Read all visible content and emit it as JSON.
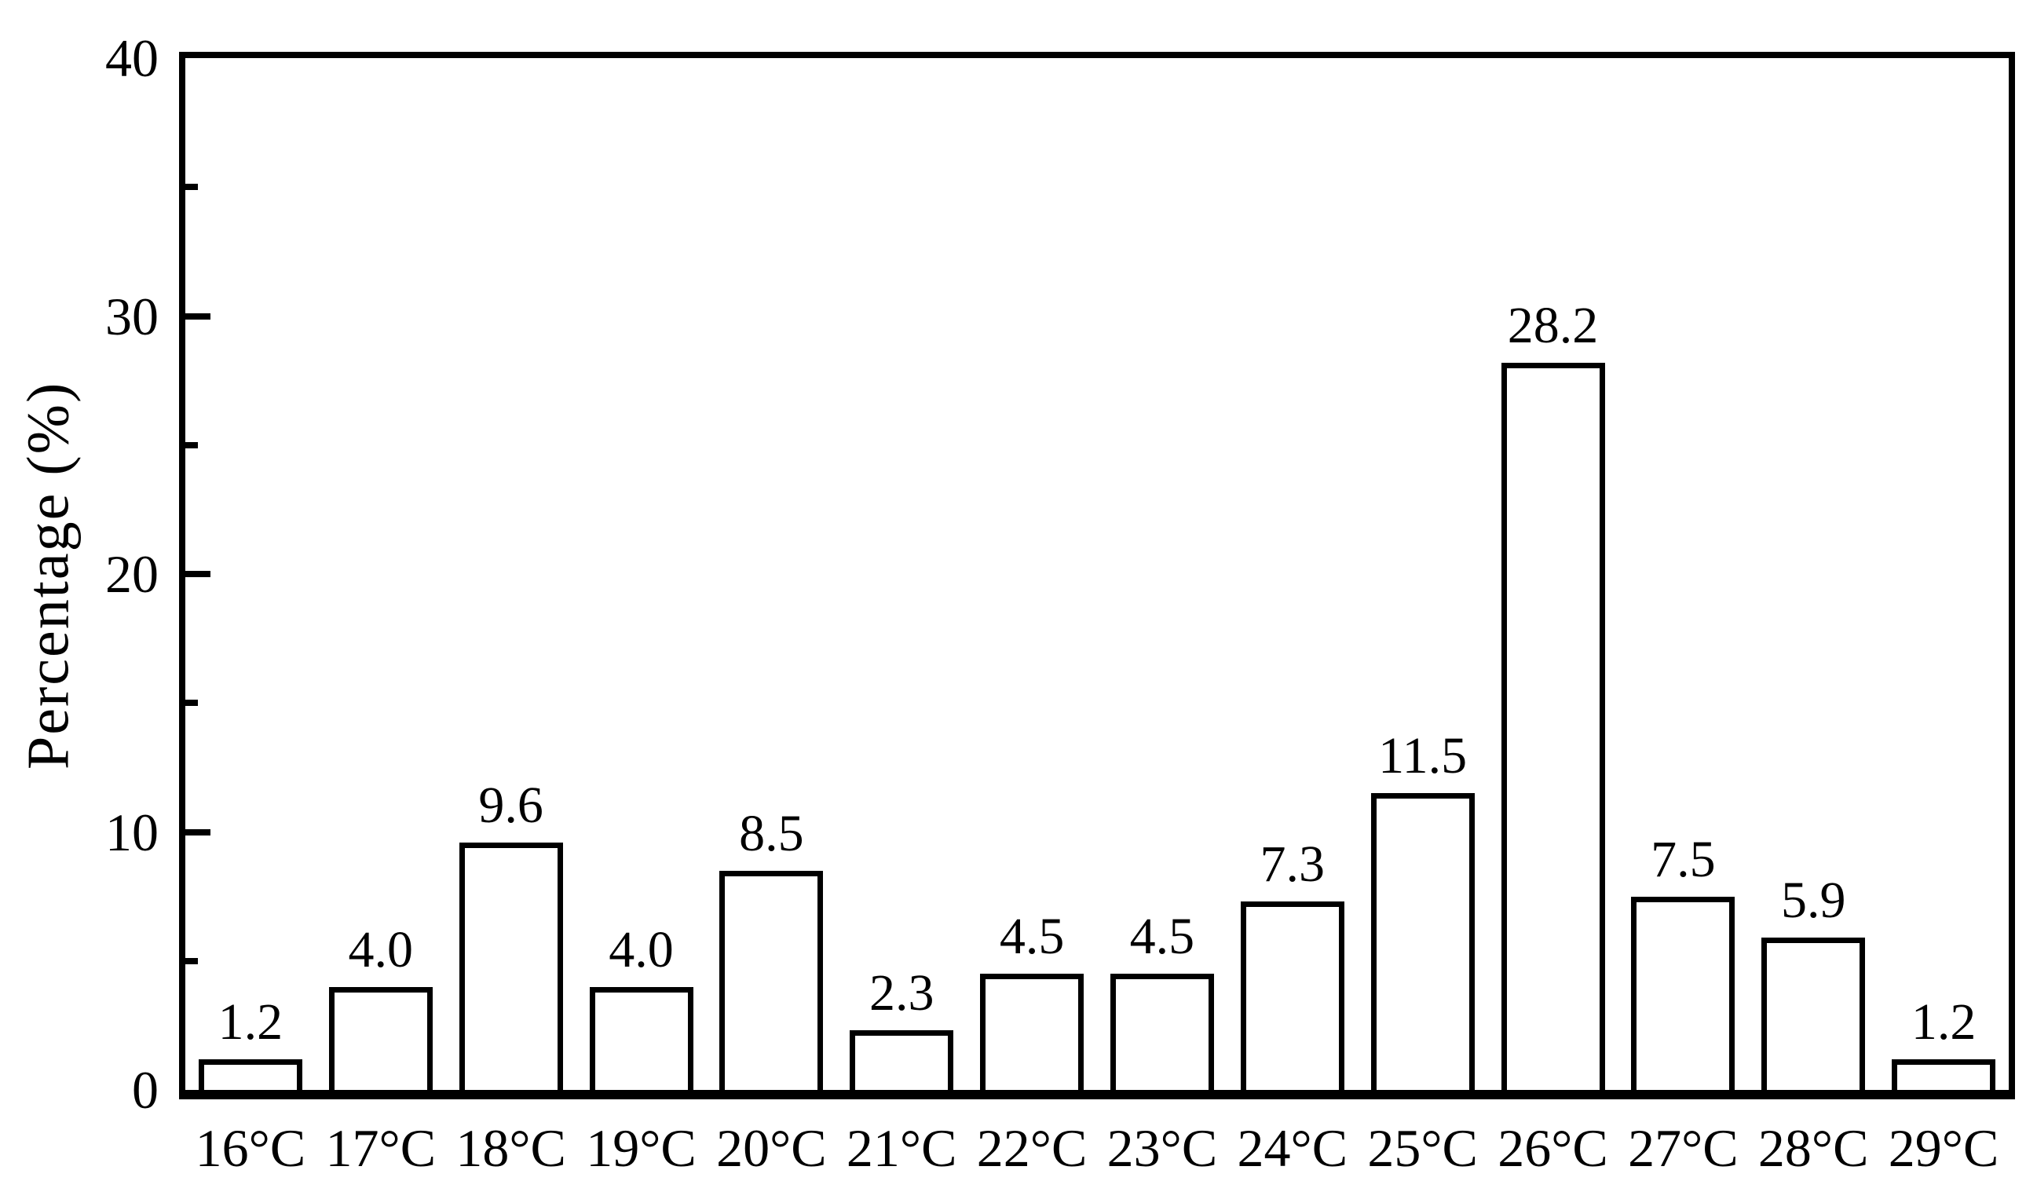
{
  "figure": {
    "background_color": "#ffffff",
    "ink_color": "#000000",
    "bar_fill_color": "#ffffff",
    "bar_border_color": "#000000"
  },
  "chart_data": {
    "type": "bar",
    "title": "",
    "xlabel": "",
    "ylabel": "Percentage (%)",
    "categories": [
      "16°C",
      "17°C",
      "18°C",
      "19°C",
      "20°C",
      "21°C",
      "22°C",
      "23°C",
      "24°C",
      "25°C",
      "26°C",
      "27°C",
      "28°C",
      "29°C"
    ],
    "values": [
      1.2,
      4.0,
      9.6,
      4.0,
      8.5,
      2.3,
      4.5,
      4.5,
      7.3,
      11.5,
      28.2,
      7.5,
      5.9,
      1.2
    ],
    "value_labels": [
      "1.2",
      "4.0",
      "9.6",
      "4.0",
      "8.5",
      "2.3",
      "4.5",
      "4.5",
      "7.3",
      "11.5",
      "28.2",
      "7.5",
      "5.9",
      "1.2"
    ],
    "ylim": [
      0,
      40
    ],
    "ytick_major_values": [
      0,
      10,
      20,
      30,
      40
    ],
    "ytick_labels": [
      "0",
      "10",
      "20",
      "30",
      "40"
    ],
    "ytick_minor_values": [
      5,
      15,
      25,
      35
    ],
    "grid": false,
    "legend": null,
    "bar_fill": "#ffffff",
    "bar_border": "#000000",
    "frame": "full-box",
    "ticks_direction": "in"
  }
}
